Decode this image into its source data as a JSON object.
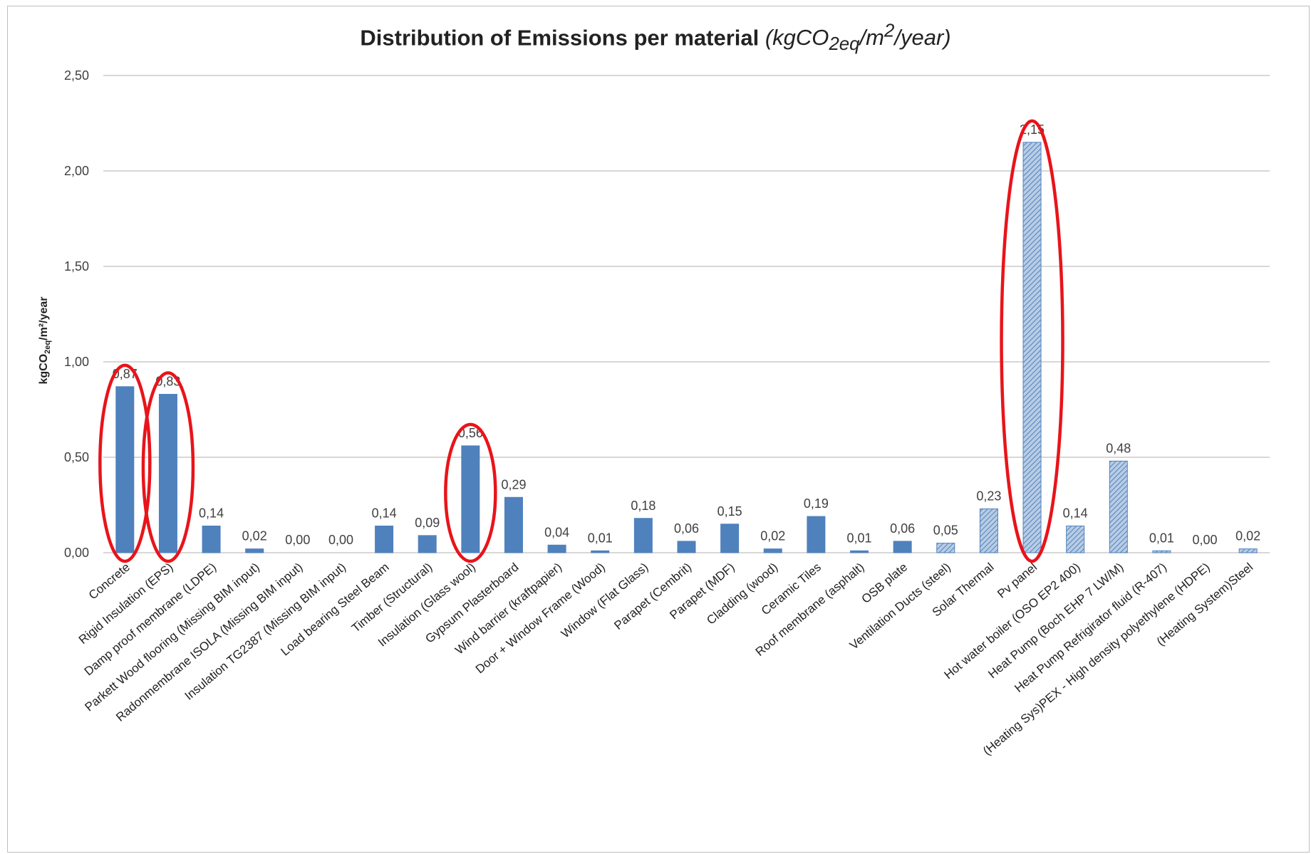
{
  "chart_data": {
    "type": "bar",
    "title": "Distribution of Emissions per material",
    "title_unit": "(kgCO2eq/m2/year)",
    "xlabel": "",
    "ylabel": "kgCO2eq/m2/year",
    "ylim": [
      0,
      2.5
    ],
    "yticks": [
      "0,00",
      "0,50",
      "1,00",
      "1,50",
      "2,00",
      "2,50"
    ],
    "grid": true,
    "legend": "none",
    "categories": [
      "Concrete",
      "Rigid Insulation (EPS)",
      "Damp proof membrane (LDPE)",
      "Parkett Wood flooring (Missing BIM input)",
      "Radonmembrane ISOLA (Missing BIM input)",
      "Insulation TG2387 (Missing BIM input)",
      "Load bearing Steel Beam",
      "Timber (Structural)",
      "Insulation (Glass wool)",
      "Gypsum Plasterboard",
      "Wind barrier (kraftpapier)",
      "Door + Window Frame (Wood)",
      "Window (Flat Glass)",
      "Parapet (Cembrit)",
      "Parapet (MDF)",
      "Cladding (wood)",
      "Ceramic Tiles",
      "Roof membrane (asphalt)",
      "OSB plate",
      "Ventilation Ducts (steel)",
      "Solar Thermal",
      "Pv panel",
      "Hot water boiler (OSO EP2 400)",
      "Heat Pump (Boch EHP 7 LW/M)",
      "Heat Pump Refrigirator fluid (R-407)",
      "(Heating Sys)PEX - High density polyethylene (HDPE)",
      "(Heating System)Steel"
    ],
    "values": [
      0.87,
      0.83,
      0.14,
      0.02,
      0.0,
      0.0,
      0.14,
      0.09,
      0.56,
      0.29,
      0.04,
      0.01,
      0.18,
      0.06,
      0.15,
      0.02,
      0.19,
      0.01,
      0.06,
      0.05,
      0.23,
      2.15,
      0.14,
      0.48,
      0.01,
      0.0,
      0.02
    ],
    "value_labels": [
      "0,87",
      "0,83",
      "0,14",
      "0,02",
      "0,00",
      "0,00",
      "0,14",
      "0,09",
      "0,56",
      "0,29",
      "0,04",
      "0,01",
      "0,18",
      "0,06",
      "0,15",
      "0,02",
      "0,19",
      "0,01",
      "0,06",
      "0,05",
      "0,23",
      "2,15",
      "0,14",
      "0,48",
      "0,01",
      "0,00",
      "0,02"
    ],
    "hatched_from_index": 19,
    "highlighted": [
      "Concrete",
      "Rigid Insulation (EPS)",
      "Insulation (Glass wool)",
      "Pv panel"
    ],
    "colors": {
      "bar": "#4f81bd",
      "hatch_bg": "#b8cce4",
      "hatch_line": "#4f81bd",
      "highlight": "#e8141a",
      "grid": "#bfbfbf"
    }
  }
}
